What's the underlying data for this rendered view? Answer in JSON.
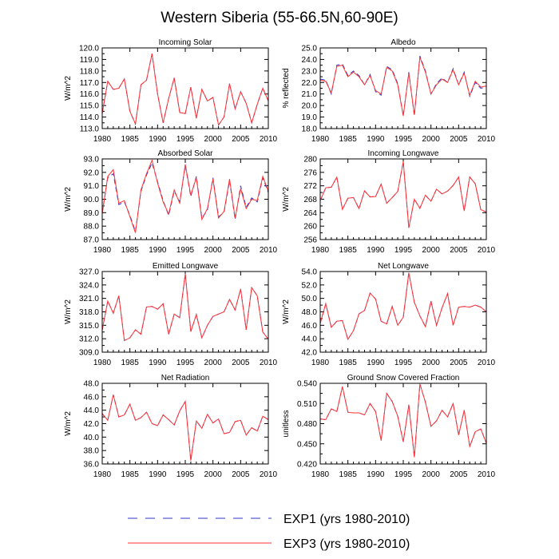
{
  "title": "Western Siberia (55-66.5N,60-90E)",
  "colors": {
    "exp1": "#3333cc",
    "exp3": "#ff3333",
    "axis": "#000000"
  },
  "legend": {
    "exp1_label": "EXP1 (yrs 1980-2010)",
    "exp3_label": "EXP3 (yrs 1980-2010)"
  },
  "chart_data": [
    {
      "type": "line",
      "title": "Incoming Solar",
      "ylabel": "W/m^2",
      "ylim": [
        113.0,
        120.0
      ],
      "yticks": [
        "113.0",
        "114.0",
        "115.0",
        "116.0",
        "117.0",
        "118.0",
        "119.0",
        "120.0"
      ],
      "xticks": [
        "1980",
        "1985",
        "1990",
        "1995",
        "2000",
        "2005",
        "2010"
      ],
      "xlim": [
        1980,
        2010
      ],
      "x": [
        1980,
        1981,
        1982,
        1983,
        1984,
        1985,
        1986,
        1987,
        1988,
        1989,
        1990,
        1991,
        1992,
        1993,
        1994,
        1995,
        1996,
        1997,
        1998,
        1999,
        2000,
        2001,
        2002,
        2003,
        2004,
        2005,
        2006,
        2007,
        2008,
        2009,
        2010
      ],
      "series": [
        {
          "name": "EXP1",
          "values": [
            114.3,
            117.1,
            116.4,
            116.5,
            117.3,
            114.5,
            113.4,
            116.8,
            117.2,
            119.5,
            116.0,
            113.5,
            115.6,
            117.4,
            114.4,
            114.3,
            116.6,
            113.9,
            116.4,
            115.4,
            115.7,
            113.3,
            114.0,
            116.9,
            114.7,
            116.2,
            115.2,
            113.5,
            115.1,
            116.5,
            115.4
          ]
        },
        {
          "name": "EXP3",
          "values": [
            114.3,
            117.1,
            116.4,
            116.5,
            117.3,
            114.5,
            113.4,
            116.8,
            117.2,
            119.5,
            116.0,
            113.5,
            115.6,
            117.4,
            114.4,
            114.3,
            116.6,
            113.9,
            116.4,
            115.4,
            115.7,
            113.3,
            114.0,
            116.9,
            114.7,
            116.2,
            115.2,
            113.5,
            115.1,
            116.5,
            115.4
          ]
        }
      ]
    },
    {
      "type": "line",
      "title": "Albedo",
      "ylabel": "% reflected",
      "ylim": [
        18.0,
        25.0
      ],
      "yticks": [
        "18.0",
        "19.0",
        "20.0",
        "21.0",
        "22.0",
        "23.0",
        "24.0",
        "25.0"
      ],
      "xticks": [
        "1980",
        "1985",
        "1990",
        "1995",
        "2000",
        "2005",
        "2010"
      ],
      "xlim": [
        1980,
        2010
      ],
      "x": [
        1980,
        1981,
        1982,
        1983,
        1984,
        1985,
        1986,
        1987,
        1988,
        1989,
        1990,
        1991,
        1992,
        1993,
        1994,
        1995,
        1996,
        1997,
        1998,
        1999,
        2000,
        2001,
        2002,
        2003,
        2004,
        2005,
        2006,
        2007,
        2008,
        2009,
        2010
      ],
      "series": [
        {
          "name": "EXP1",
          "values": [
            22.3,
            22.2,
            21.0,
            23.5,
            23.6,
            22.6,
            23.0,
            22.6,
            21.8,
            22.7,
            21.2,
            20.9,
            23.4,
            23.1,
            21.9,
            19.1,
            22.9,
            19.1,
            24.3,
            23.0,
            21.0,
            21.9,
            22.4,
            22.0,
            23.2,
            21.8,
            22.9,
            20.8,
            22.0,
            21.5,
            21.6
          ]
        },
        {
          "name": "EXP3",
          "values": [
            22.2,
            22.1,
            21.1,
            23.4,
            23.5,
            22.5,
            22.9,
            22.5,
            21.8,
            22.6,
            21.3,
            21.0,
            23.3,
            23.0,
            21.8,
            19.1,
            22.8,
            19.2,
            24.2,
            22.9,
            21.0,
            21.8,
            22.3,
            22.0,
            23.1,
            21.8,
            22.8,
            20.9,
            22.1,
            21.6,
            21.7
          ]
        }
      ]
    },
    {
      "type": "line",
      "title": "Absorbed Solar",
      "ylabel": "W/m^2",
      "ylim": [
        87.0,
        93.0
      ],
      "yticks": [
        "87.0",
        "88.0",
        "89.0",
        "90.0",
        "91.0",
        "92.0",
        "93.0"
      ],
      "xticks": [
        "1980",
        "1985",
        "1990",
        "1995",
        "2000",
        "2005",
        "2010"
      ],
      "xlim": [
        1980,
        2010
      ],
      "x": [
        1980,
        1981,
        1982,
        1983,
        1984,
        1985,
        1986,
        1987,
        1988,
        1989,
        1990,
        1991,
        1992,
        1993,
        1994,
        1995,
        1996,
        1997,
        1998,
        1999,
        2000,
        2001,
        2002,
        2003,
        2004,
        2005,
        2006,
        2007,
        2008,
        2009,
        2010
      ],
      "series": [
        {
          "name": "EXP1",
          "values": [
            89.0,
            91.6,
            91.9,
            89.6,
            89.8,
            88.8,
            87.6,
            90.6,
            91.8,
            92.7,
            91.3,
            89.9,
            88.8,
            90.6,
            89.8,
            92.5,
            90.2,
            91.7,
            88.6,
            89.2,
            91.6,
            88.7,
            89.0,
            91.4,
            88.5,
            91.0,
            89.4,
            90.1,
            89.8,
            91.6,
            90.5
          ]
        },
        {
          "name": "EXP3",
          "values": [
            88.9,
            91.7,
            92.2,
            89.7,
            89.9,
            88.7,
            87.5,
            90.7,
            91.9,
            92.9,
            91.2,
            89.8,
            88.9,
            90.7,
            89.7,
            92.6,
            90.3,
            91.6,
            88.5,
            89.3,
            91.5,
            88.6,
            89.1,
            91.5,
            88.6,
            90.8,
            89.3,
            90.0,
            89.9,
            91.7,
            90.6
          ]
        }
      ]
    },
    {
      "type": "line",
      "title": "Incoming Longwave",
      "ylabel": "W/m^2",
      "ylim": [
        256,
        280
      ],
      "yticks": [
        "256",
        "260",
        "264",
        "268",
        "272",
        "276",
        "280"
      ],
      "xticks": [
        "1980",
        "1985",
        "1990",
        "1995",
        "2000",
        "2005",
        "2010"
      ],
      "xlim": [
        1980,
        2010
      ],
      "x": [
        1980,
        1981,
        1982,
        1983,
        1984,
        1985,
        1986,
        1987,
        1988,
        1989,
        1990,
        1991,
        1992,
        1993,
        1994,
        1995,
        1996,
        1997,
        1998,
        1999,
        2000,
        2001,
        2002,
        2003,
        2004,
        2005,
        2006,
        2007,
        2008,
        2009,
        2010
      ],
      "series": [
        {
          "name": "EXP1",
          "values": [
            267.6,
            271.4,
            271.6,
            274.6,
            265.0,
            268.3,
            268.5,
            265.2,
            270.5,
            268.7,
            268.8,
            272.5,
            266.8,
            268.5,
            270.3,
            279.2,
            259.5,
            268.0,
            265.3,
            269.2,
            267.4,
            271.0,
            269.6,
            270.4,
            272.1,
            274.6,
            264.5,
            274.6,
            272.6,
            264.9,
            264.2
          ]
        },
        {
          "name": "EXP3",
          "values": [
            267.6,
            271.4,
            271.6,
            274.6,
            265.0,
            268.3,
            268.5,
            265.2,
            270.5,
            268.7,
            268.8,
            272.5,
            266.8,
            268.5,
            270.3,
            279.2,
            259.5,
            268.0,
            265.3,
            269.2,
            267.4,
            271.0,
            269.6,
            270.4,
            272.1,
            274.6,
            264.5,
            274.6,
            272.6,
            264.9,
            264.2
          ]
        }
      ]
    },
    {
      "type": "line",
      "title": "Emitted Longwave",
      "ylabel": "W/m^2",
      "ylim": [
        309.0,
        327.0
      ],
      "yticks": [
        "309.0",
        "312.0",
        "315.0",
        "318.0",
        "321.0",
        "324.0",
        "327.0"
      ],
      "xticks": [
        "1980",
        "1985",
        "1990",
        "1995",
        "2000",
        "2005",
        "2010"
      ],
      "xlim": [
        1980,
        2010
      ],
      "x": [
        1980,
        1981,
        1982,
        1983,
        1984,
        1985,
        1986,
        1987,
        1988,
        1989,
        1990,
        1991,
        1992,
        1993,
        1994,
        1995,
        1996,
        1997,
        1998,
        1999,
        2000,
        2001,
        2002,
        2003,
        2004,
        2005,
        2006,
        2007,
        2008,
        2009,
        2010
      ],
      "series": [
        {
          "name": "EXP1",
          "values": [
            313.9,
            320.4,
            317.7,
            321.6,
            311.6,
            312.2,
            314.0,
            313.0,
            319.1,
            319.2,
            318.6,
            319.8,
            313.0,
            317.5,
            316.7,
            326.5,
            313.6,
            317.4,
            312.2,
            315.0,
            317.0,
            317.5,
            318.0,
            320.8,
            318.4,
            323.1,
            314.0,
            323.4,
            321.6,
            313.5,
            311.9
          ]
        },
        {
          "name": "EXP3",
          "values": [
            313.9,
            320.4,
            317.7,
            321.6,
            311.6,
            312.2,
            314.0,
            313.0,
            319.1,
            319.2,
            318.6,
            319.8,
            313.0,
            317.5,
            316.7,
            326.5,
            313.6,
            317.4,
            312.2,
            315.0,
            317.0,
            317.5,
            318.0,
            320.8,
            318.4,
            323.1,
            314.0,
            323.4,
            321.6,
            313.5,
            311.9
          ]
        }
      ]
    },
    {
      "type": "line",
      "title": "Net Longwave",
      "ylabel": "W/m^2",
      "ylim": [
        42.0,
        54.0
      ],
      "yticks": [
        "42.0",
        "44.0",
        "46.0",
        "48.0",
        "50.0",
        "52.0",
        "54.0"
      ],
      "xticks": [
        "1980",
        "1985",
        "1990",
        "1995",
        "2000",
        "2005",
        "2010"
      ],
      "xlim": [
        1980,
        2010
      ],
      "x": [
        1980,
        1981,
        1982,
        1983,
        1984,
        1985,
        1986,
        1987,
        1988,
        1989,
        1990,
        1991,
        1992,
        1993,
        1994,
        1995,
        1996,
        1997,
        1998,
        1999,
        2000,
        2001,
        2002,
        2003,
        2004,
        2005,
        2006,
        2007,
        2008,
        2009,
        2010
      ],
      "series": [
        {
          "name": "EXP1",
          "values": [
            46.3,
            49.2,
            45.7,
            46.6,
            46.7,
            43.9,
            45.2,
            47.7,
            48.2,
            50.8,
            49.9,
            46.6,
            46.2,
            48.8,
            46.0,
            47.2,
            53.8,
            49.4,
            47.4,
            45.8,
            49.6,
            46.0,
            48.6,
            50.7,
            46.0,
            48.7,
            48.8,
            48.7,
            49.0,
            48.7,
            48.0
          ]
        },
        {
          "name": "EXP3",
          "values": [
            46.3,
            49.2,
            45.7,
            46.6,
            46.7,
            43.9,
            45.2,
            47.7,
            48.2,
            50.8,
            49.9,
            46.6,
            46.2,
            48.8,
            46.0,
            47.2,
            53.8,
            49.4,
            47.4,
            45.8,
            49.6,
            46.0,
            48.6,
            50.7,
            46.0,
            48.7,
            48.8,
            48.7,
            49.0,
            48.7,
            48.0
          ]
        }
      ]
    },
    {
      "type": "line",
      "title": "Net Radiation",
      "ylabel": "W/m^2",
      "ylim": [
        36.0,
        48.0
      ],
      "yticks": [
        "36.0",
        "38.0",
        "40.0",
        "42.0",
        "44.0",
        "46.0",
        "48.0"
      ],
      "xticks": [
        "1980",
        "1985",
        "1990",
        "1995",
        "2000",
        "2005",
        "2010"
      ],
      "xlim": [
        1980,
        2010
      ],
      "x": [
        1980,
        1981,
        1982,
        1983,
        1984,
        1985,
        1986,
        1987,
        1988,
        1989,
        1990,
        1991,
        1992,
        1993,
        1994,
        1995,
        1996,
        1997,
        1998,
        1999,
        2000,
        2001,
        2002,
        2003,
        2004,
        2005,
        2006,
        2007,
        2008,
        2009,
        2010
      ],
      "series": [
        {
          "name": "EXP1",
          "values": [
            43.5,
            42.5,
            46.3,
            43.0,
            43.3,
            44.9,
            42.5,
            42.9,
            43.7,
            42.0,
            41.7,
            43.3,
            42.6,
            41.8,
            43.9,
            45.3,
            36.5,
            42.4,
            41.3,
            43.4,
            42.1,
            42.7,
            40.5,
            40.7,
            42.3,
            42.5,
            40.3,
            41.4,
            40.9,
            43.1,
            42.6
          ]
        },
        {
          "name": "EXP3",
          "values": [
            43.5,
            42.5,
            46.3,
            43.0,
            43.3,
            44.9,
            42.5,
            42.9,
            43.7,
            42.0,
            41.7,
            43.3,
            42.6,
            41.8,
            43.9,
            45.3,
            36.5,
            42.4,
            41.3,
            43.4,
            42.1,
            42.7,
            40.5,
            40.7,
            42.3,
            42.5,
            40.3,
            41.4,
            40.9,
            43.1,
            42.6
          ]
        }
      ]
    },
    {
      "type": "line",
      "title": "Ground Snow Covered Fraction",
      "ylabel": "unitless",
      "ylim": [
        0.42,
        0.54
      ],
      "yticks": [
        "0.420",
        "0.450",
        "0.480",
        "0.510",
        "0.540"
      ],
      "xticks": [
        "1980",
        "1985",
        "1990",
        "1995",
        "2000",
        "2005",
        "2010"
      ],
      "xlim": [
        1980,
        2010
      ],
      "x": [
        1980,
        1981,
        1982,
        1983,
        1984,
        1985,
        1986,
        1987,
        1988,
        1989,
        1990,
        1991,
        1992,
        1993,
        1994,
        1995,
        1996,
        1997,
        1998,
        1999,
        2000,
        2001,
        2002,
        2003,
        2004,
        2005,
        2006,
        2007,
        2008,
        2009,
        2010
      ],
      "series": [
        {
          "name": "EXP1",
          "values": [
            0.487,
            0.486,
            0.502,
            0.498,
            0.535,
            0.497,
            0.496,
            0.496,
            0.493,
            0.51,
            0.498,
            0.455,
            0.525,
            0.513,
            0.491,
            0.453,
            0.508,
            0.43,
            0.539,
            0.512,
            0.476,
            0.484,
            0.5,
            0.49,
            0.51,
            0.463,
            0.5,
            0.446,
            0.468,
            0.472,
            0.451
          ]
        },
        {
          "name": "EXP3",
          "values": [
            0.487,
            0.486,
            0.502,
            0.498,
            0.535,
            0.497,
            0.496,
            0.496,
            0.493,
            0.51,
            0.498,
            0.455,
            0.525,
            0.513,
            0.491,
            0.453,
            0.508,
            0.43,
            0.539,
            0.512,
            0.476,
            0.484,
            0.5,
            0.49,
            0.51,
            0.463,
            0.5,
            0.446,
            0.468,
            0.472,
            0.451
          ]
        }
      ]
    }
  ]
}
